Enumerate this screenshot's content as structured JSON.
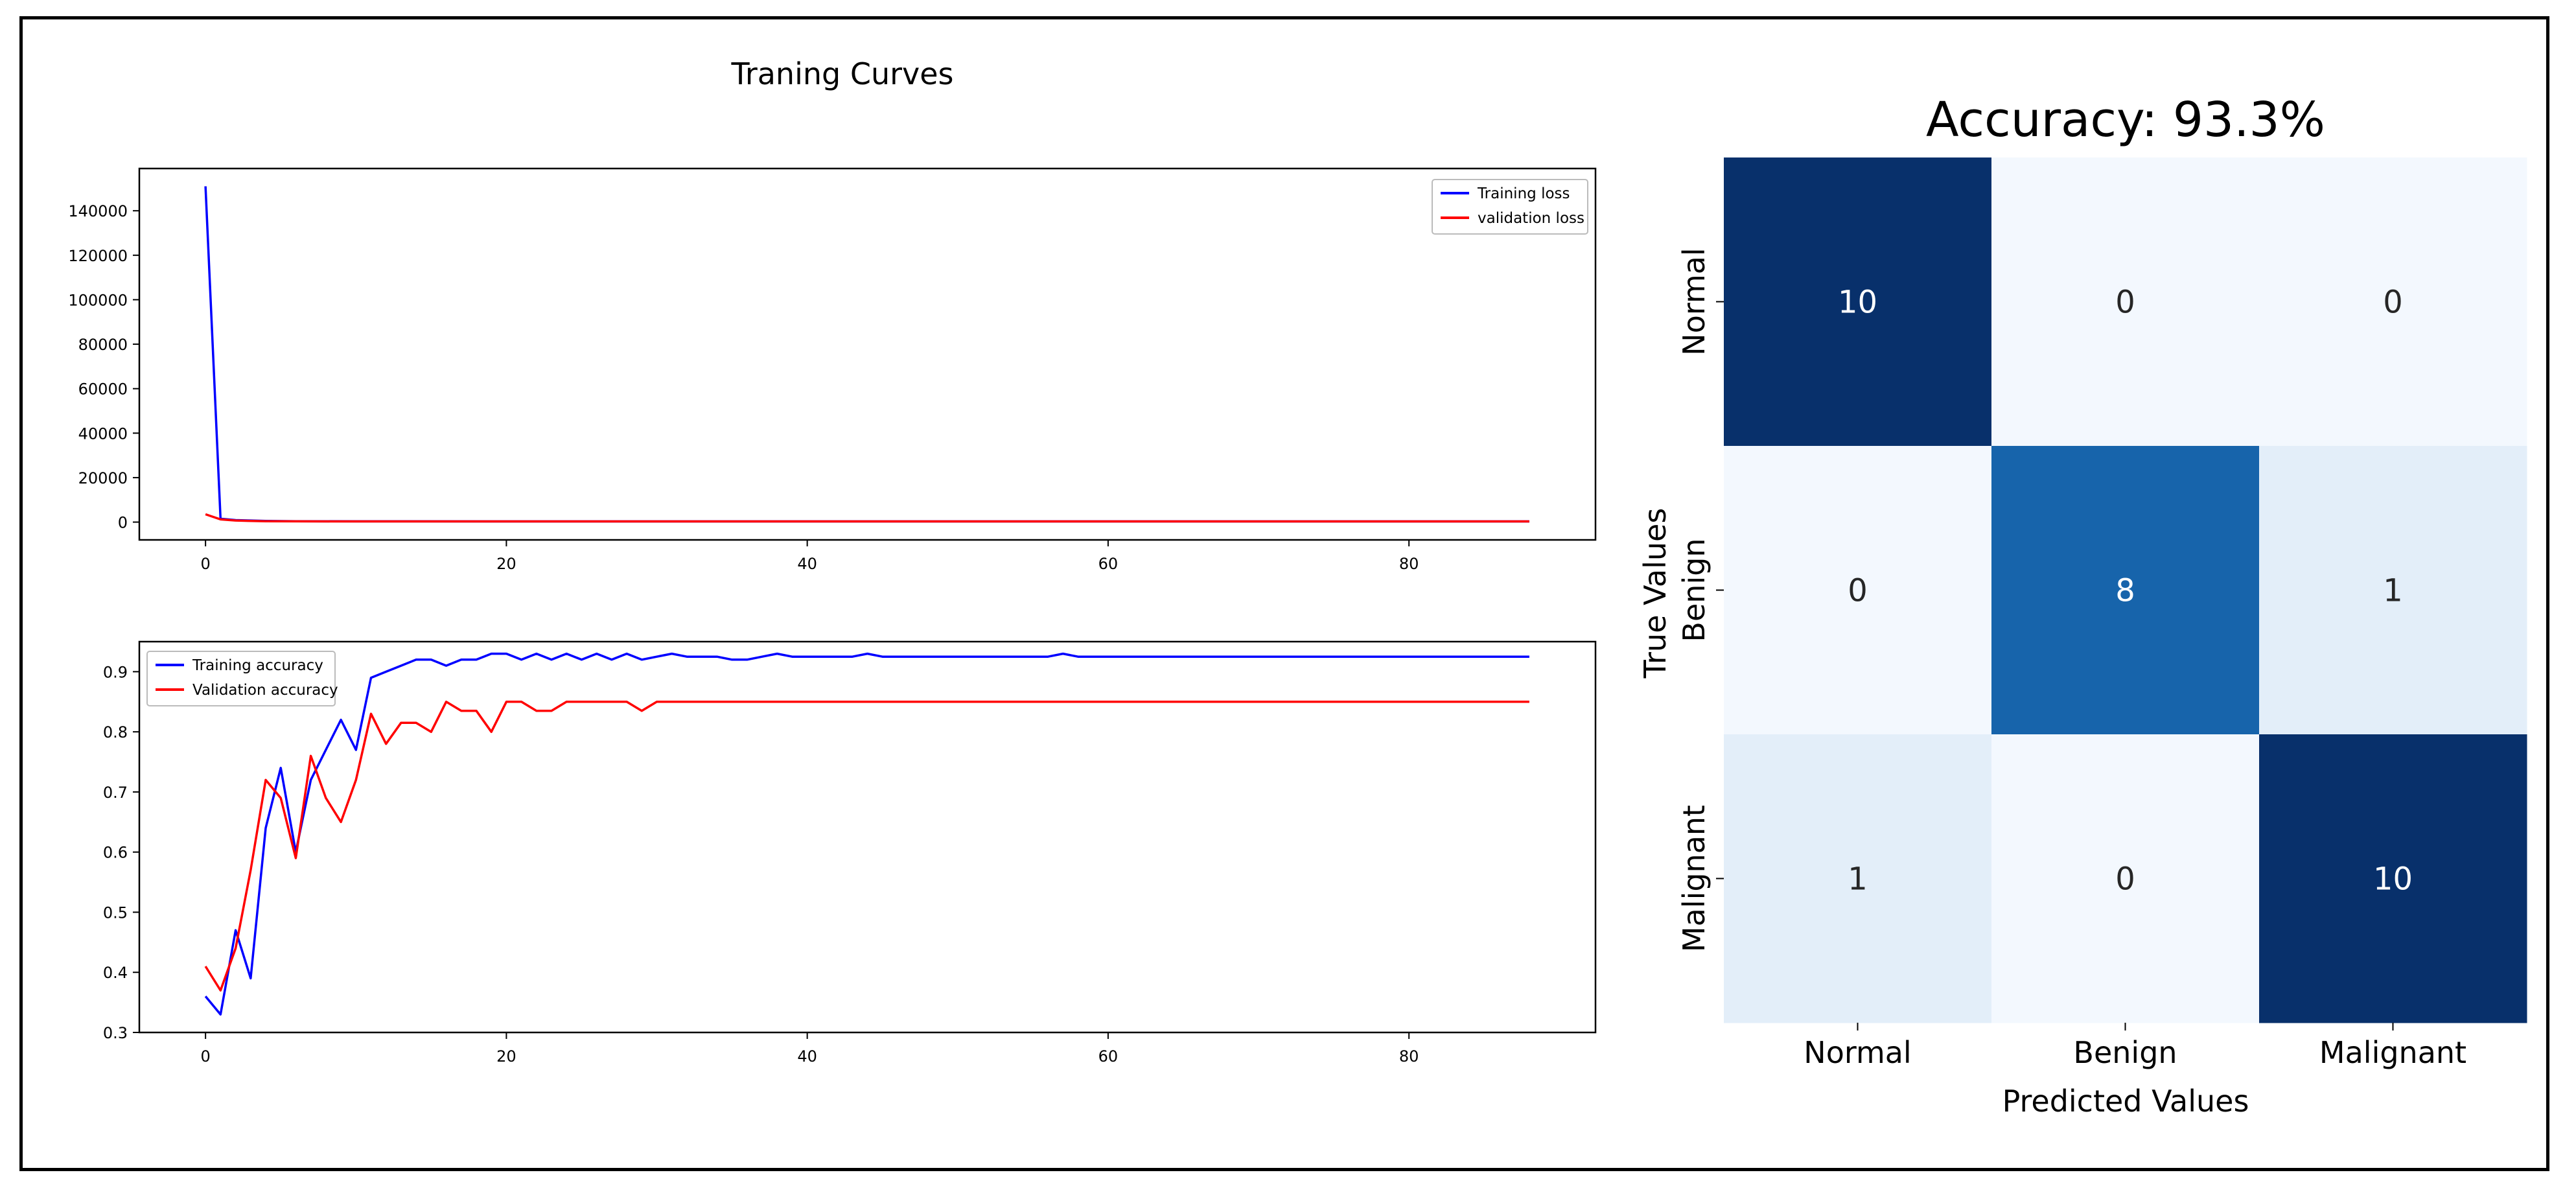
{
  "chart_data": [
    {
      "type": "line",
      "title": "Traning Curves",
      "xlabel": "",
      "ylabel": "",
      "xlim": [
        -4.4,
        92.4
      ],
      "ylim": [
        -8000,
        159000
      ],
      "xticks": [
        0,
        20,
        40,
        60,
        80
      ],
      "yticks": [
        0,
        20000,
        40000,
        60000,
        80000,
        100000,
        120000,
        140000
      ],
      "ytick_labels": [
        "0",
        "20000",
        "40000",
        "60000",
        "80000",
        "100000",
        "120000",
        "140000"
      ],
      "xtick_labels": [
        "0",
        "20",
        "40",
        "60",
        "80"
      ],
      "legend_position": "top-right",
      "series": [
        {
          "name": "Training loss",
          "color": "#0000ff",
          "x": [
            0,
            1,
            2,
            3,
            4,
            6,
            10,
            20,
            40,
            60,
            80,
            88
          ],
          "values": [
            151000,
            1500,
            900,
            700,
            500,
            400,
            350,
            300,
            300,
            300,
            300,
            300
          ]
        },
        {
          "name": "validation loss",
          "color": "#ff0000",
          "x": [
            0,
            1,
            2,
            3,
            4,
            6,
            10,
            20,
            40,
            60,
            80,
            88
          ],
          "values": [
            3500,
            1200,
            700,
            500,
            400,
            350,
            300,
            300,
            300,
            300,
            300,
            300
          ]
        }
      ]
    },
    {
      "type": "line",
      "title": "",
      "xlabel": "",
      "ylabel": "",
      "xlim": [
        -4.4,
        92.4
      ],
      "ylim": [
        0.3,
        0.95
      ],
      "xticks": [
        0,
        20,
        40,
        60,
        80
      ],
      "yticks": [
        0.3,
        0.4,
        0.5,
        0.6,
        0.7,
        0.8,
        0.9
      ],
      "ytick_labels": [
        "0.3",
        "0.4",
        "0.5",
        "0.6",
        "0.7",
        "0.8",
        "0.9"
      ],
      "xtick_labels": [
        "0",
        "20",
        "40",
        "60",
        "80"
      ],
      "legend_position": "top-left",
      "series": [
        {
          "name": "Training accuracy",
          "color": "#0000ff",
          "x": [
            0,
            1,
            2,
            3,
            4,
            5,
            6,
            7,
            8,
            9,
            10,
            11,
            12,
            13,
            14,
            15,
            16,
            17,
            18,
            19,
            20,
            21,
            22,
            23,
            24,
            25,
            26,
            27,
            28,
            29,
            30,
            31,
            32,
            33,
            34,
            35,
            36,
            37,
            38,
            39,
            40,
            41,
            42,
            43,
            44,
            45,
            46,
            50,
            56,
            57,
            58,
            60,
            70,
            80,
            88
          ],
          "values": [
            0.36,
            0.33,
            0.47,
            0.39,
            0.64,
            0.74,
            0.6,
            0.72,
            0.77,
            0.82,
            0.77,
            0.89,
            0.9,
            0.91,
            0.92,
            0.92,
            0.91,
            0.92,
            0.92,
            0.93,
            0.93,
            0.92,
            0.93,
            0.92,
            0.93,
            0.92,
            0.93,
            0.92,
            0.93,
            0.92,
            0.925,
            0.93,
            0.925,
            0.925,
            0.925,
            0.92,
            0.92,
            0.925,
            0.93,
            0.925,
            0.925,
            0.925,
            0.925,
            0.925,
            0.93,
            0.925,
            0.925,
            0.925,
            0.925,
            0.93,
            0.925,
            0.925,
            0.925,
            0.925,
            0.925
          ]
        },
        {
          "name": "Validation accuracy",
          "color": "#ff0000",
          "x": [
            0,
            1,
            2,
            3,
            4,
            5,
            6,
            7,
            8,
            9,
            10,
            11,
            12,
            13,
            14,
            15,
            16,
            17,
            18,
            19,
            20,
            21,
            22,
            23,
            24,
            25,
            26,
            27,
            28,
            29,
            30,
            31,
            40,
            50,
            60,
            70,
            80,
            88
          ],
          "values": [
            0.41,
            0.37,
            0.44,
            0.57,
            0.72,
            0.69,
            0.59,
            0.76,
            0.69,
            0.65,
            0.72,
            0.83,
            0.78,
            0.815,
            0.815,
            0.8,
            0.85,
            0.835,
            0.835,
            0.8,
            0.85,
            0.85,
            0.835,
            0.835,
            0.85,
            0.85,
            0.85,
            0.85,
            0.85,
            0.835,
            0.85,
            0.85,
            0.85,
            0.85,
            0.85,
            0.85,
            0.85,
            0.85
          ]
        }
      ]
    },
    {
      "type": "heatmap",
      "title": "Accuracy: 93.3%",
      "xlabel": "Predicted Values",
      "ylabel": "True Values",
      "x_categories": [
        "Normal",
        "Benign",
        "Malignant"
      ],
      "y_categories": [
        "Normal",
        "Benign",
        "Malignant"
      ],
      "colormap": "Blues",
      "vmin": 0,
      "vmax": 10,
      "values": [
        [
          10,
          0,
          0
        ],
        [
          0,
          8,
          1
        ],
        [
          1,
          0,
          10
        ]
      ],
      "annotations": [
        [
          "10",
          "0",
          "0"
        ],
        [
          "0",
          "8",
          "1"
        ],
        [
          "1",
          "0",
          "10"
        ]
      ],
      "colorbar": false
    }
  ]
}
